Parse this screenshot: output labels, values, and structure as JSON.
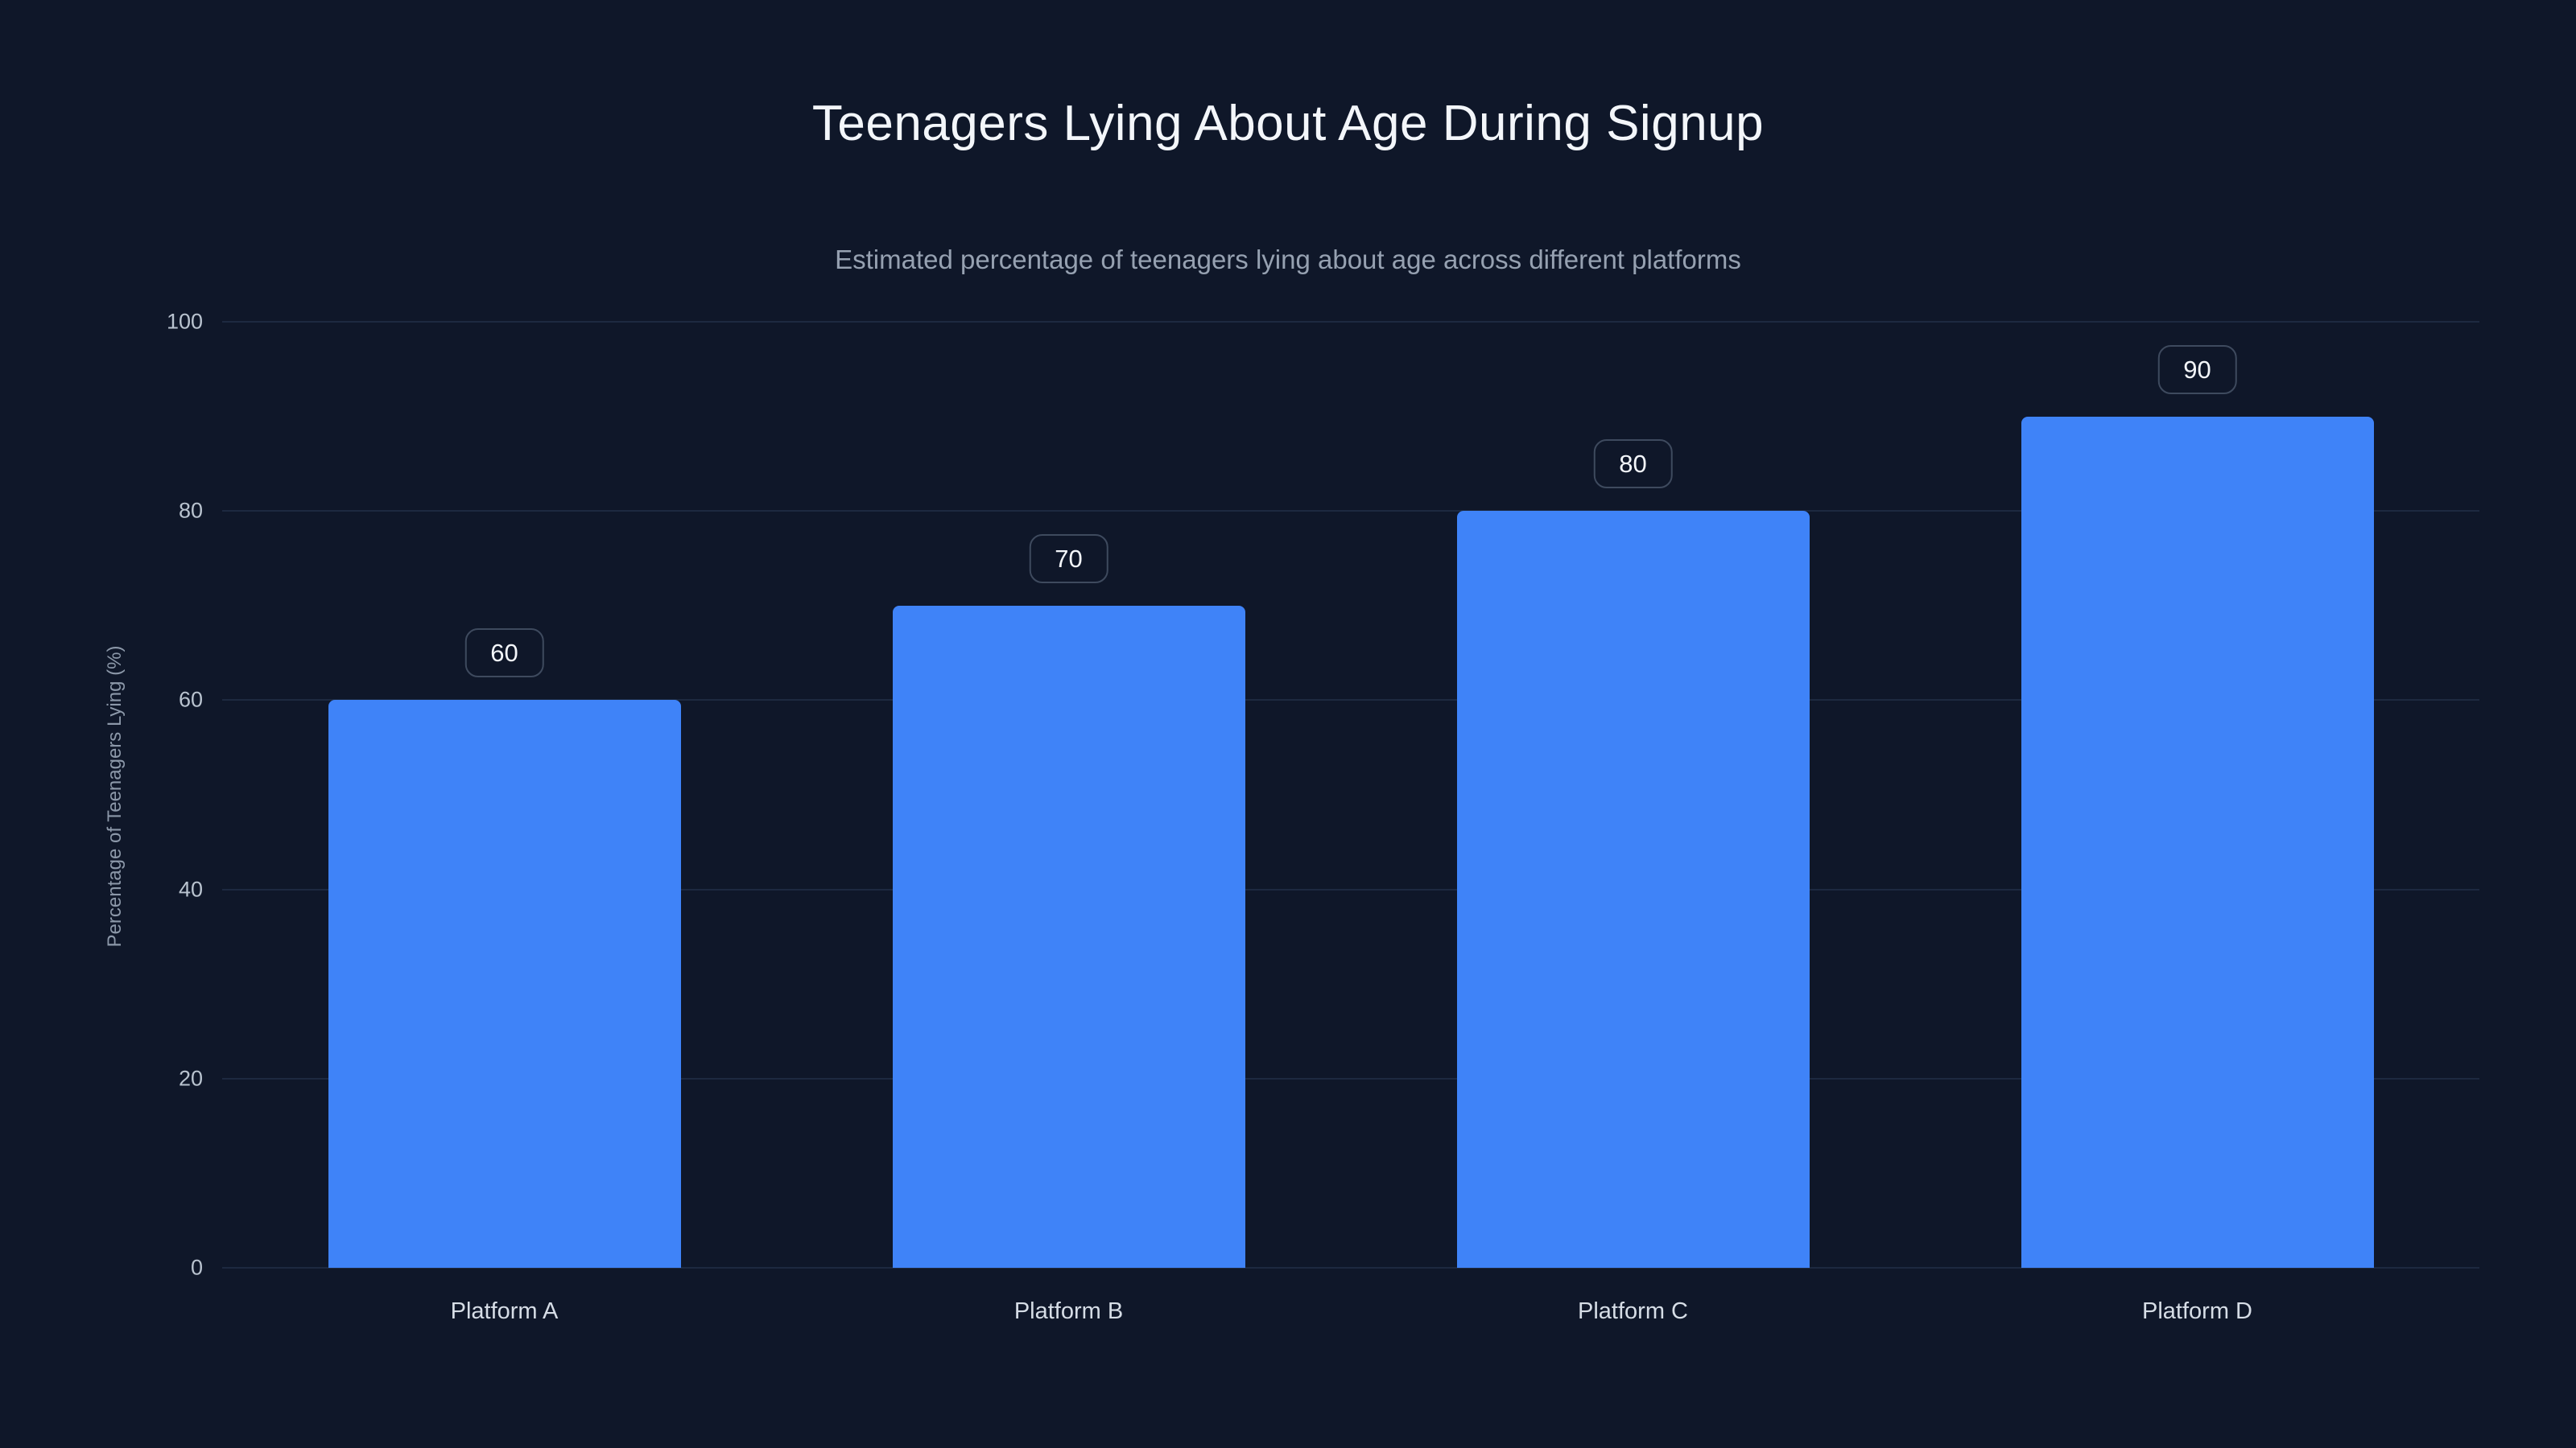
{
  "chart_data": {
    "type": "bar",
    "title": "Teenagers Lying About Age During Signup",
    "subtitle": "Estimated percentage of teenagers lying about age across different platforms",
    "categories": [
      "Platform A",
      "Platform B",
      "Platform C",
      "Platform D"
    ],
    "values": [
      60,
      70,
      80,
      90
    ],
    "xlabel": "",
    "ylabel": "Percentage of Teenagers Lying (%)",
    "ylim": [
      0,
      100
    ],
    "yticks": [
      0,
      20,
      40,
      60,
      80,
      100
    ],
    "grid": true,
    "legend": "none",
    "data_labels": true,
    "colors": {
      "bar": "#3f83f8",
      "background": "#0f1729",
      "gridline": "#1d2940",
      "badge_border": "#3e4a5e",
      "title_text": "#f3f6fa",
      "subtitle_text": "#96a1b1"
    }
  }
}
